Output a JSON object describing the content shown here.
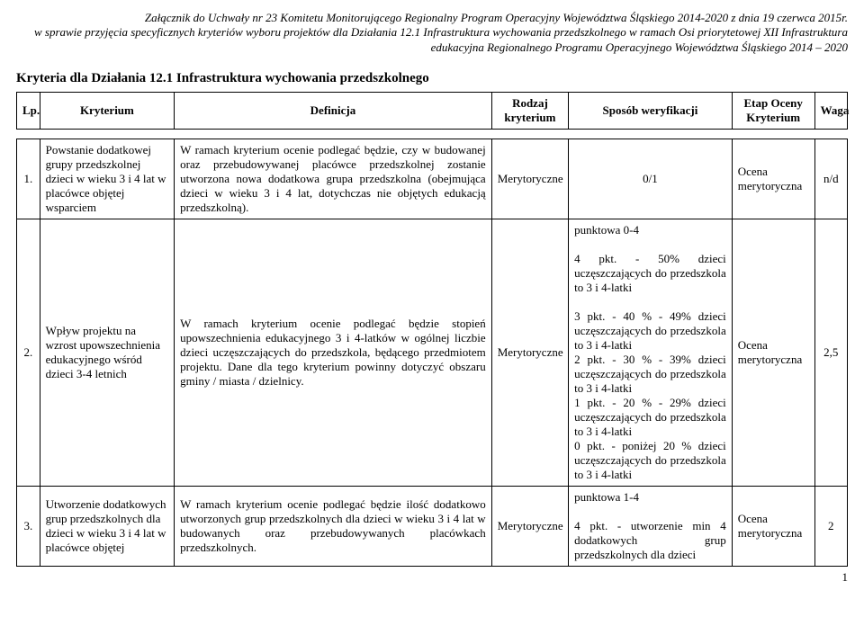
{
  "header": {
    "line1": "Załącznik do Uchwały nr 23 Komitetu Monitorującego Regionalny Program Operacyjny Województwa Śląskiego 2014-2020 z dnia 19 czerwca 2015r.",
    "line2": "w sprawie przyjęcia specyficznych kryteriów wyboru projektów dla Działania 12.1 Infrastruktura wychowania przedszkolnego w ramach Osi priorytetowej XII Infrastruktura",
    "line3": "edukacyjna Regionalnego Programu Operacyjnego Województwa Śląskiego 2014 – 2020"
  },
  "title": "Kryteria dla Działania 12.1 Infrastruktura wychowania przedszkolnego",
  "columns": {
    "lp": "Lp.",
    "kryterium": "Kryterium",
    "definicja": "Definicja",
    "rodzaj": "Rodzaj kryterium",
    "sposob": "Sposób weryfikacji",
    "etap": "Etap Oceny Kryterium",
    "waga": "Waga"
  },
  "rows": [
    {
      "lp": "1.",
      "kryterium": "Powstanie dodatkowej grupy przedszkolnej dzieci w wieku 3 i 4 lat w placówce objętej wsparciem",
      "definicja": "W ramach kryterium ocenie podlegać będzie, czy w budowanej oraz przebudowywanej placówce przedszkolnej zostanie utworzona nowa dodatkowa grupa przedszkolna (obejmująca dzieci w wieku 3 i 4 lat, dotychczas nie objętych edukacją przedszkolną).",
      "rodzaj": "Merytoryczne",
      "sposob": "0/1",
      "etap": "Ocena merytoryczna",
      "waga": "n/d"
    },
    {
      "lp": "2.",
      "kryterium": "Wpływ projektu na wzrost upowszechnienia edukacyjnego wśród dzieci 3-4 letnich",
      "definicja": "W ramach kryterium ocenie podlegać będzie stopień upowszechnienia edukacyjnego 3 i 4-latków w ogólnej liczbie dzieci uczęszczających do przedszkola, będącego przedmiotem projektu. Dane dla tego kryterium powinny dotyczyć obszaru gminy / miasta / dzielnicy.",
      "rodzaj": "Merytoryczne",
      "sposob": "punktowa 0-4\n\n4 pkt. - 50% dzieci uczęszczających do przedszkola to 3 i 4-latki\n\n3 pkt. - 40 % - 49% dzieci uczęszczających do przedszkola to 3 i 4-latki\n2 pkt. - 30 % - 39% dzieci uczęszczających do przedszkola to 3 i 4-latki\n1 pkt. - 20 % - 29% dzieci uczęszczających do przedszkola to 3 i 4-latki\n0 pkt. - poniżej 20 % dzieci uczęszczających do przedszkola to 3 i 4-latki",
      "etap": "Ocena merytoryczna",
      "waga": "2,5"
    },
    {
      "lp": "3.",
      "kryterium": "Utworzenie dodatkowych grup przedszkolnych dla dzieci w wieku 3 i 4 lat w placówce objętej",
      "definicja": "W ramach kryterium ocenie podlegać będzie ilość dodatkowo utworzonych grup przedszkolnych dla dzieci w wieku 3 i 4 lat w budowanych oraz przebudowywanych placówkach przedszkolnych.",
      "rodzaj": "Merytoryczne",
      "sposob": "punktowa 1-4\n\n4 pkt. - utworzenie min 4 dodatkowych grup przedszkolnych dla dzieci",
      "etap": "Ocena merytoryczna",
      "waga": "2"
    }
  ],
  "pageNumber": "1"
}
